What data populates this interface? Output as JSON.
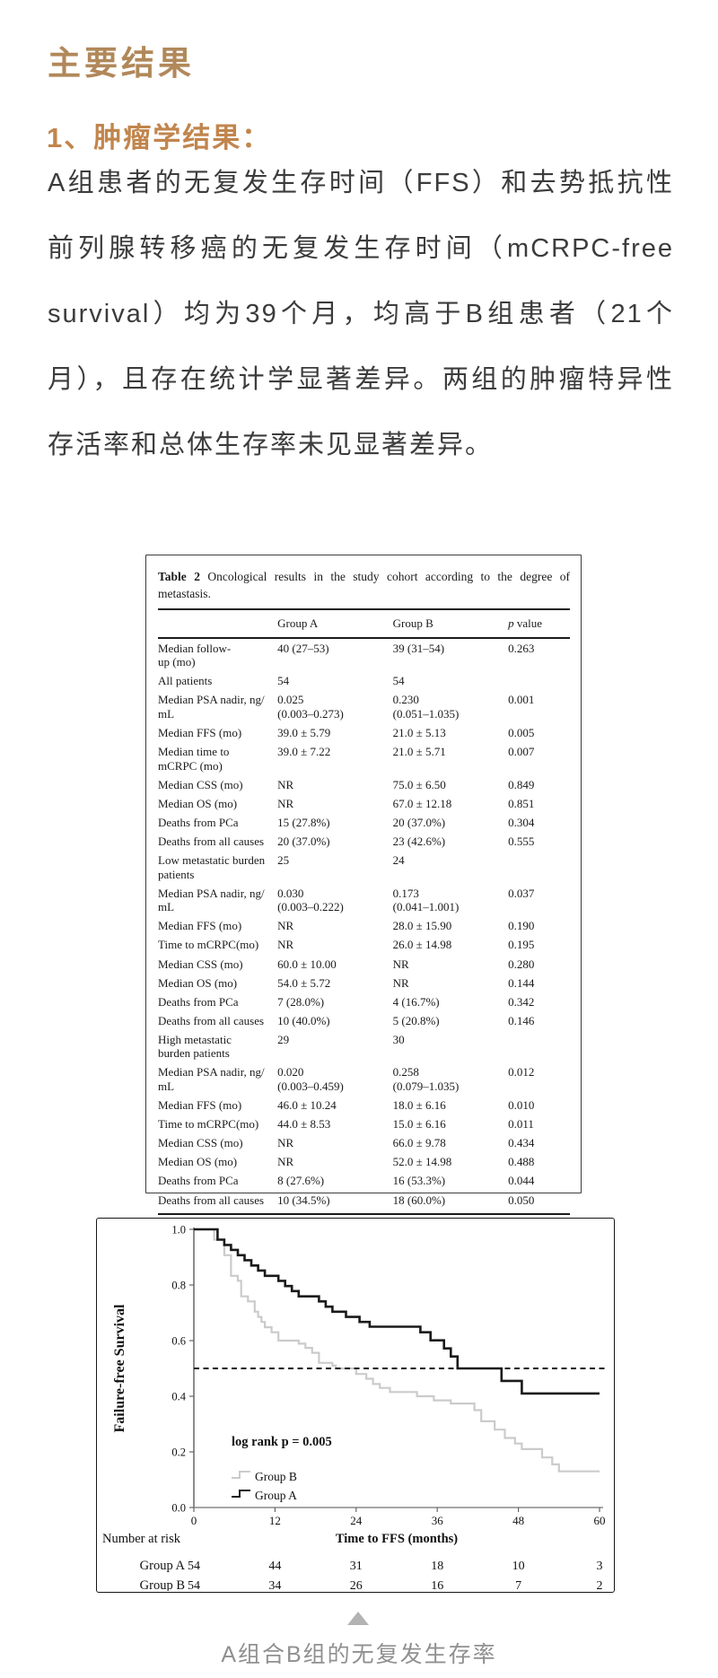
{
  "page": {
    "heading": "主要结果",
    "subheading": "1、肿瘤学结果：",
    "paragraph": "A组患者的无复发生存时间（FFS）和去势抵抗性前列腺转移癌的无复发生存时间（mCRPC-free survival）均为39个月，均高于B组患者（21个月），且存在统计学显著差异。两组的肿瘤特异性存活率和总体生存率未见显著差异。",
    "caption": "A组合B组的无复发生存率",
    "colors": {
      "heading": "#b1885a",
      "subheading": "#c1854d",
      "body_text": "#3c3c3c",
      "caption": "#909090",
      "triangle": "#b3b3b3"
    }
  },
  "table": {
    "title_bold": "Table 2",
    "title_rest": " Oncological results in the study cohort according to the degree of metastasis.",
    "columns": [
      "",
      "Group A",
      "Group B",
      "p value"
    ],
    "rows": [
      [
        "Median follow-\nup (mo)",
        "40 (27–53)",
        "39 (31–54)",
        "0.263"
      ],
      [
        "All patients",
        "54",
        "54",
        ""
      ],
      [
        "Median PSA nadir, ng/\nmL",
        "0.025\n(0.003–0.273)",
        "0.230\n(0.051–1.035)",
        "0.001"
      ],
      [
        "Median FFS (mo)",
        "39.0 ± 5.79",
        "21.0 ± 5.13",
        "0.005"
      ],
      [
        "Median time to\nmCRPC (mo)",
        "39.0 ± 7.22",
        "21.0 ± 5.71",
        "0.007"
      ],
      [
        "Median CSS (mo)",
        "NR",
        "75.0 ± 6.50",
        "0.849"
      ],
      [
        "Median OS (mo)",
        "NR",
        "67.0 ± 12.18",
        "0.851"
      ],
      [
        "Deaths from PCa",
        "15 (27.8%)",
        "20 (37.0%)",
        "0.304"
      ],
      [
        "Deaths from all causes",
        "20 (37.0%)",
        "23 (42.6%)",
        "0.555"
      ],
      [
        "Low metastatic burden\npatients",
        "25",
        "24",
        ""
      ],
      [
        "Median PSA nadir, ng/\nmL",
        "0.030\n(0.003–0.222)",
        "0.173\n(0.041–1.001)",
        "0.037"
      ],
      [
        "Median FFS (mo)",
        "NR",
        "28.0 ± 15.90",
        "0.190"
      ],
      [
        "Time to mCRPC(mo)",
        "NR",
        "26.0 ± 14.98",
        "0.195"
      ],
      [
        "Median CSS (mo)",
        "60.0 ± 10.00",
        "NR",
        "0.280"
      ],
      [
        "Median OS (mo)",
        "54.0 ± 5.72",
        "NR",
        "0.144"
      ],
      [
        "Deaths from PCa",
        "7 (28.0%)",
        "4 (16.7%)",
        "0.342"
      ],
      [
        "Deaths from all causes",
        "10 (40.0%)",
        "5 (20.8%)",
        "0.146"
      ],
      [
        "High metastatic\nburden patients",
        "29",
        "30",
        ""
      ],
      [
        "Median PSA nadir, ng/\nmL",
        "0.020\n(0.003–0.459)",
        "0.258\n(0.079–1.035)",
        "0.012"
      ],
      [
        "Median FFS (mo)",
        "46.0 ± 10.24",
        "18.0 ± 6.16",
        "0.010"
      ],
      [
        "Time to mCRPC(mo)",
        "44.0 ± 8.53",
        "15.0 ± 6.16",
        "0.011"
      ],
      [
        "Median CSS (mo)",
        "NR",
        "66.0 ± 9.78",
        "0.434"
      ],
      [
        "Median OS (mo)",
        "NR",
        "52.0 ± 14.98",
        "0.488"
      ],
      [
        "Deaths from PCa",
        "8 (27.6%)",
        "16 (53.3%)",
        "0.044"
      ],
      [
        "Deaths from all causes",
        "10 (34.5%)",
        "18 (60.0%)",
        "0.050"
      ]
    ]
  },
  "chart_data": {
    "type": "line",
    "subtype": "kaplan-meier-step",
    "title": "",
    "ylabel": "Failure-free Survival",
    "xlabel": "Time to FFS (months)",
    "xlim": [
      0,
      60
    ],
    "ylim": [
      0.0,
      1.0
    ],
    "x_ticks": [
      0,
      12,
      24,
      36,
      48,
      60
    ],
    "y_ticks": [
      0.0,
      0.2,
      0.4,
      0.6,
      0.8,
      1.0
    ],
    "grid": false,
    "annotation": "log rank p = 0.005",
    "reference_line_y": 0.5,
    "legend_position": "lower-left-inside",
    "legend": [
      {
        "name": "Group B",
        "color": "#cbcbcb"
      },
      {
        "name": "Group A",
        "color": "#1a1a1a"
      }
    ],
    "series": [
      {
        "name": "Group B",
        "color": "#cbcbcb",
        "width": 2.2,
        "steps": [
          [
            0,
            1.0
          ],
          [
            3,
            0.963
          ],
          [
            4.5,
            0.907
          ],
          [
            5.5,
            0.833
          ],
          [
            6.5,
            0.815
          ],
          [
            7,
            0.759
          ],
          [
            8,
            0.741
          ],
          [
            9,
            0.704
          ],
          [
            9.5,
            0.685
          ],
          [
            10,
            0.667
          ],
          [
            10.5,
            0.648
          ],
          [
            11.5,
            0.63
          ],
          [
            12.5,
            0.6
          ],
          [
            15.5,
            0.589
          ],
          [
            16.5,
            0.574
          ],
          [
            17.5,
            0.556
          ],
          [
            18.5,
            0.52
          ],
          [
            20.5,
            0.51
          ],
          [
            21,
            0.5
          ],
          [
            24,
            0.48
          ],
          [
            25.5,
            0.463
          ],
          [
            26.5,
            0.444
          ],
          [
            27.5,
            0.43
          ],
          [
            29,
            0.415
          ],
          [
            33,
            0.4
          ],
          [
            35.5,
            0.385
          ],
          [
            38,
            0.374
          ],
          [
            41.5,
            0.35
          ],
          [
            42.5,
            0.31
          ],
          [
            44.5,
            0.28
          ],
          [
            46,
            0.25
          ],
          [
            47.5,
            0.23
          ],
          [
            48.5,
            0.21
          ],
          [
            51.5,
            0.18
          ],
          [
            53,
            0.155
          ],
          [
            54,
            0.13
          ],
          [
            60,
            0.13
          ]
        ]
      },
      {
        "name": "Group A",
        "color": "#1a1a1a",
        "width": 2.6,
        "steps": [
          [
            0,
            1.0
          ],
          [
            3.5,
            0.963
          ],
          [
            4.5,
            0.944
          ],
          [
            5.5,
            0.926
          ],
          [
            6.5,
            0.907
          ],
          [
            7.5,
            0.889
          ],
          [
            8.5,
            0.87
          ],
          [
            9.5,
            0.852
          ],
          [
            10.5,
            0.833
          ],
          [
            12.5,
            0.815
          ],
          [
            13.5,
            0.796
          ],
          [
            14.5,
            0.778
          ],
          [
            15.5,
            0.759
          ],
          [
            18.5,
            0.741
          ],
          [
            19.5,
            0.722
          ],
          [
            20.5,
            0.704
          ],
          [
            22.5,
            0.685
          ],
          [
            24.5,
            0.667
          ],
          [
            26,
            0.65
          ],
          [
            33.5,
            0.63
          ],
          [
            35,
            0.601
          ],
          [
            37,
            0.572
          ],
          [
            38,
            0.543
          ],
          [
            39,
            0.5
          ],
          [
            45.5,
            0.455
          ],
          [
            48.5,
            0.41
          ],
          [
            60,
            0.41
          ]
        ]
      }
    ],
    "number_at_risk": {
      "label": "Number at risk",
      "times": [
        0,
        12,
        24,
        36,
        48,
        60
      ],
      "rows": [
        {
          "name": "Group A",
          "values": [
            54,
            44,
            31,
            18,
            10,
            3
          ]
        },
        {
          "name": "Group B",
          "values": [
            54,
            34,
            26,
            16,
            7,
            2
          ]
        }
      ]
    }
  }
}
